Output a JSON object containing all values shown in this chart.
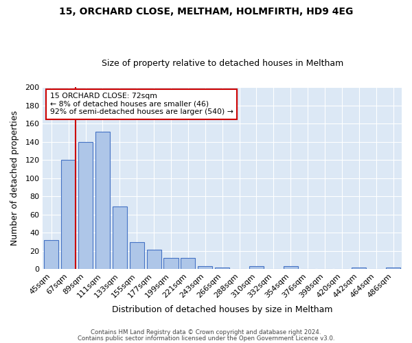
{
  "title1": "15, ORCHARD CLOSE, MELTHAM, HOLMFIRTH, HD9 4EG",
  "title2": "Size of property relative to detached houses in Meltham",
  "xlabel": "Distribution of detached houses by size in Meltham",
  "ylabel": "Number of detached properties",
  "bar_labels": [
    "45sqm",
    "67sqm",
    "89sqm",
    "111sqm",
    "133sqm",
    "155sqm",
    "177sqm",
    "199sqm",
    "221sqm",
    "243sqm",
    "266sqm",
    "288sqm",
    "310sqm",
    "332sqm",
    "354sqm",
    "376sqm",
    "398sqm",
    "420sqm",
    "442sqm",
    "464sqm",
    "486sqm"
  ],
  "bar_values": [
    32,
    120,
    140,
    151,
    69,
    30,
    21,
    12,
    12,
    3,
    2,
    0,
    3,
    0,
    3,
    0,
    0,
    0,
    2,
    0,
    2
  ],
  "bar_color": "#aec6e8",
  "bar_edge_color": "#4472c4",
  "bg_color": "#dce8f5",
  "grid_color": "#ffffff",
  "vline_x_index": 1,
  "vline_color": "#cc0000",
  "annotation_text": "15 ORCHARD CLOSE: 72sqm\n← 8% of detached houses are smaller (46)\n92% of semi-detached houses are larger (540) →",
  "annotation_box_color": "#ffffff",
  "annotation_box_edge": "#cc0000",
  "ylim": [
    0,
    200
  ],
  "yticks": [
    0,
    20,
    40,
    60,
    80,
    100,
    120,
    140,
    160,
    180,
    200
  ],
  "footer1": "Contains HM Land Registry data © Crown copyright and database right 2024.",
  "footer2": "Contains public sector information licensed under the Open Government Licence v3.0."
}
